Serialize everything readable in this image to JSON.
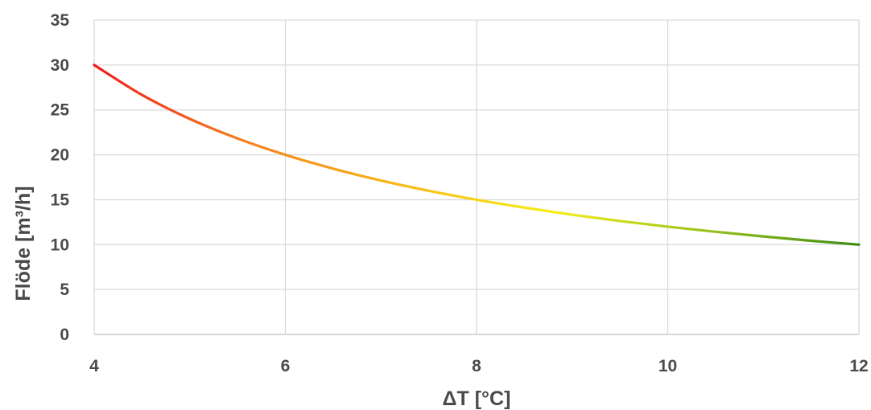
{
  "chart_data": {
    "type": "line",
    "xlabel": "ΔT [°C]",
    "ylabel": "Flöde [m³/h]",
    "xlim": [
      4,
      12
    ],
    "ylim": [
      0,
      35
    ],
    "x_ticks": [
      4,
      6,
      8,
      10,
      12
    ],
    "y_ticks": [
      0,
      5,
      10,
      15,
      20,
      25,
      30,
      35
    ],
    "grid": true,
    "legend": "none",
    "series": [
      {
        "x": [
          4,
          4.5,
          5,
          5.5,
          6,
          6.5,
          7,
          7.5,
          8,
          8.5,
          9,
          9.5,
          10,
          10.5,
          11,
          11.5,
          12
        ],
        "values": [
          30,
          26.67,
          24,
          21.82,
          20,
          18.46,
          17.14,
          16,
          15,
          14.12,
          13.33,
          12.63,
          12,
          11.43,
          10.91,
          10.43,
          10
        ]
      }
    ],
    "gradient_colors": [
      "#ee1c1c",
      "#f58220",
      "#f9b818",
      "#f5ee1a",
      "#9bc21d",
      "#3a8c10"
    ]
  }
}
